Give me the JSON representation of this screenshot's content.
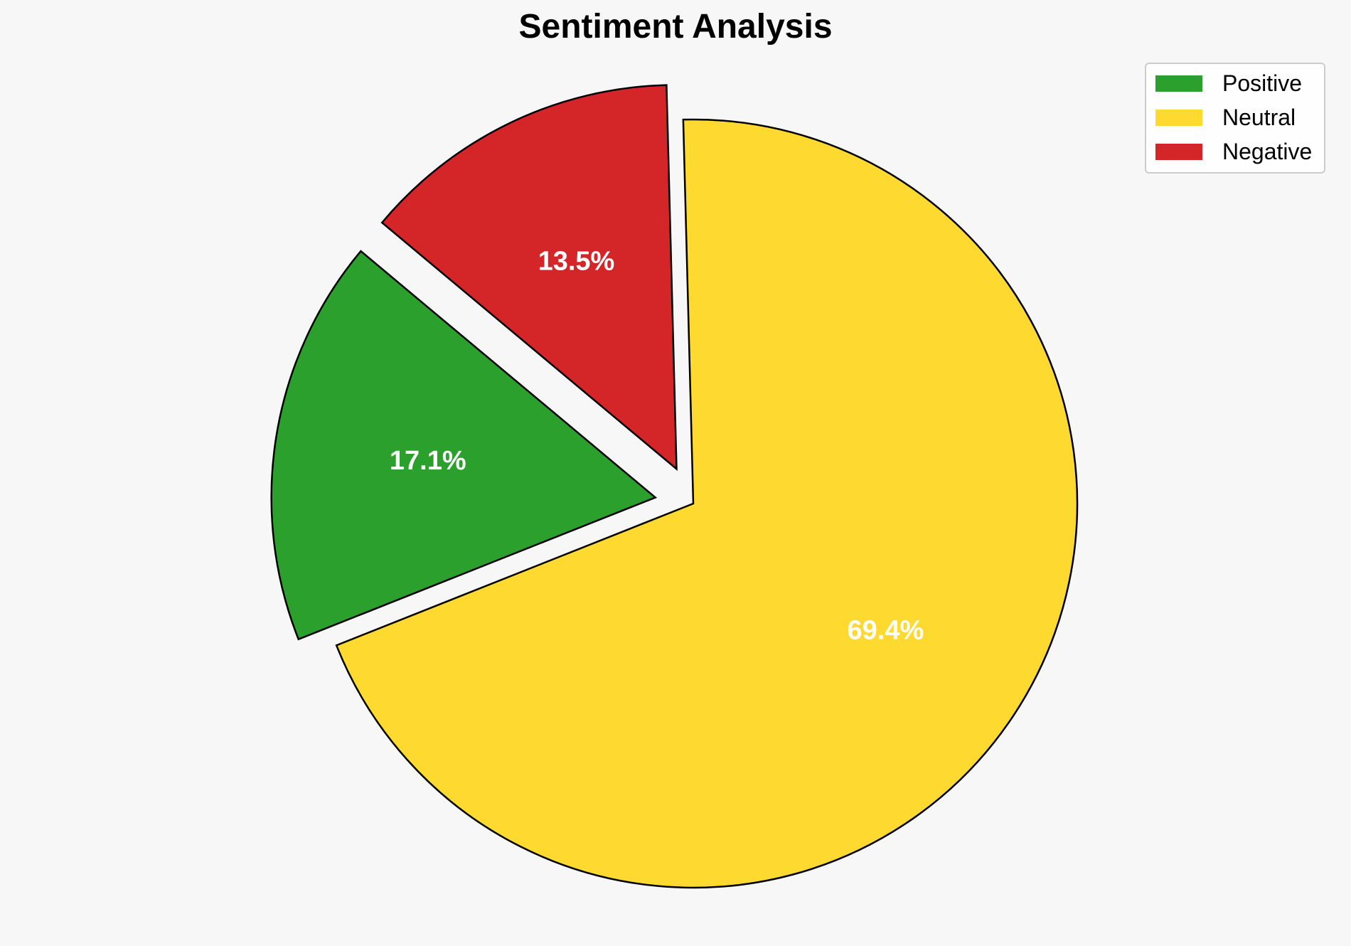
{
  "chart_data": {
    "type": "pie",
    "title": "Sentiment Analysis",
    "start_angle_deg": 91.5,
    "direction": "counterclockwise",
    "slices": [
      {
        "label": "Negative",
        "value": 13.5,
        "value_label": "13.5%",
        "color": "#d42629",
        "exploded": true
      },
      {
        "label": "Positive",
        "value": 17.1,
        "value_label": "17.1%",
        "color": "#2ca02c",
        "exploded": true
      },
      {
        "label": "Neutral",
        "value": 69.4,
        "value_label": "69.4%",
        "color": "#fed930",
        "exploded": false
      }
    ],
    "legend": {
      "placement": "top-right",
      "items": [
        {
          "label": "Positive",
          "color": "#2ca02c"
        },
        {
          "label": "Neutral",
          "color": "#fed930"
        },
        {
          "label": "Negative",
          "color": "#d42629"
        }
      ]
    },
    "edge_color": "#000000",
    "label_color": "#ffffff",
    "background": "#f7f7f7"
  }
}
